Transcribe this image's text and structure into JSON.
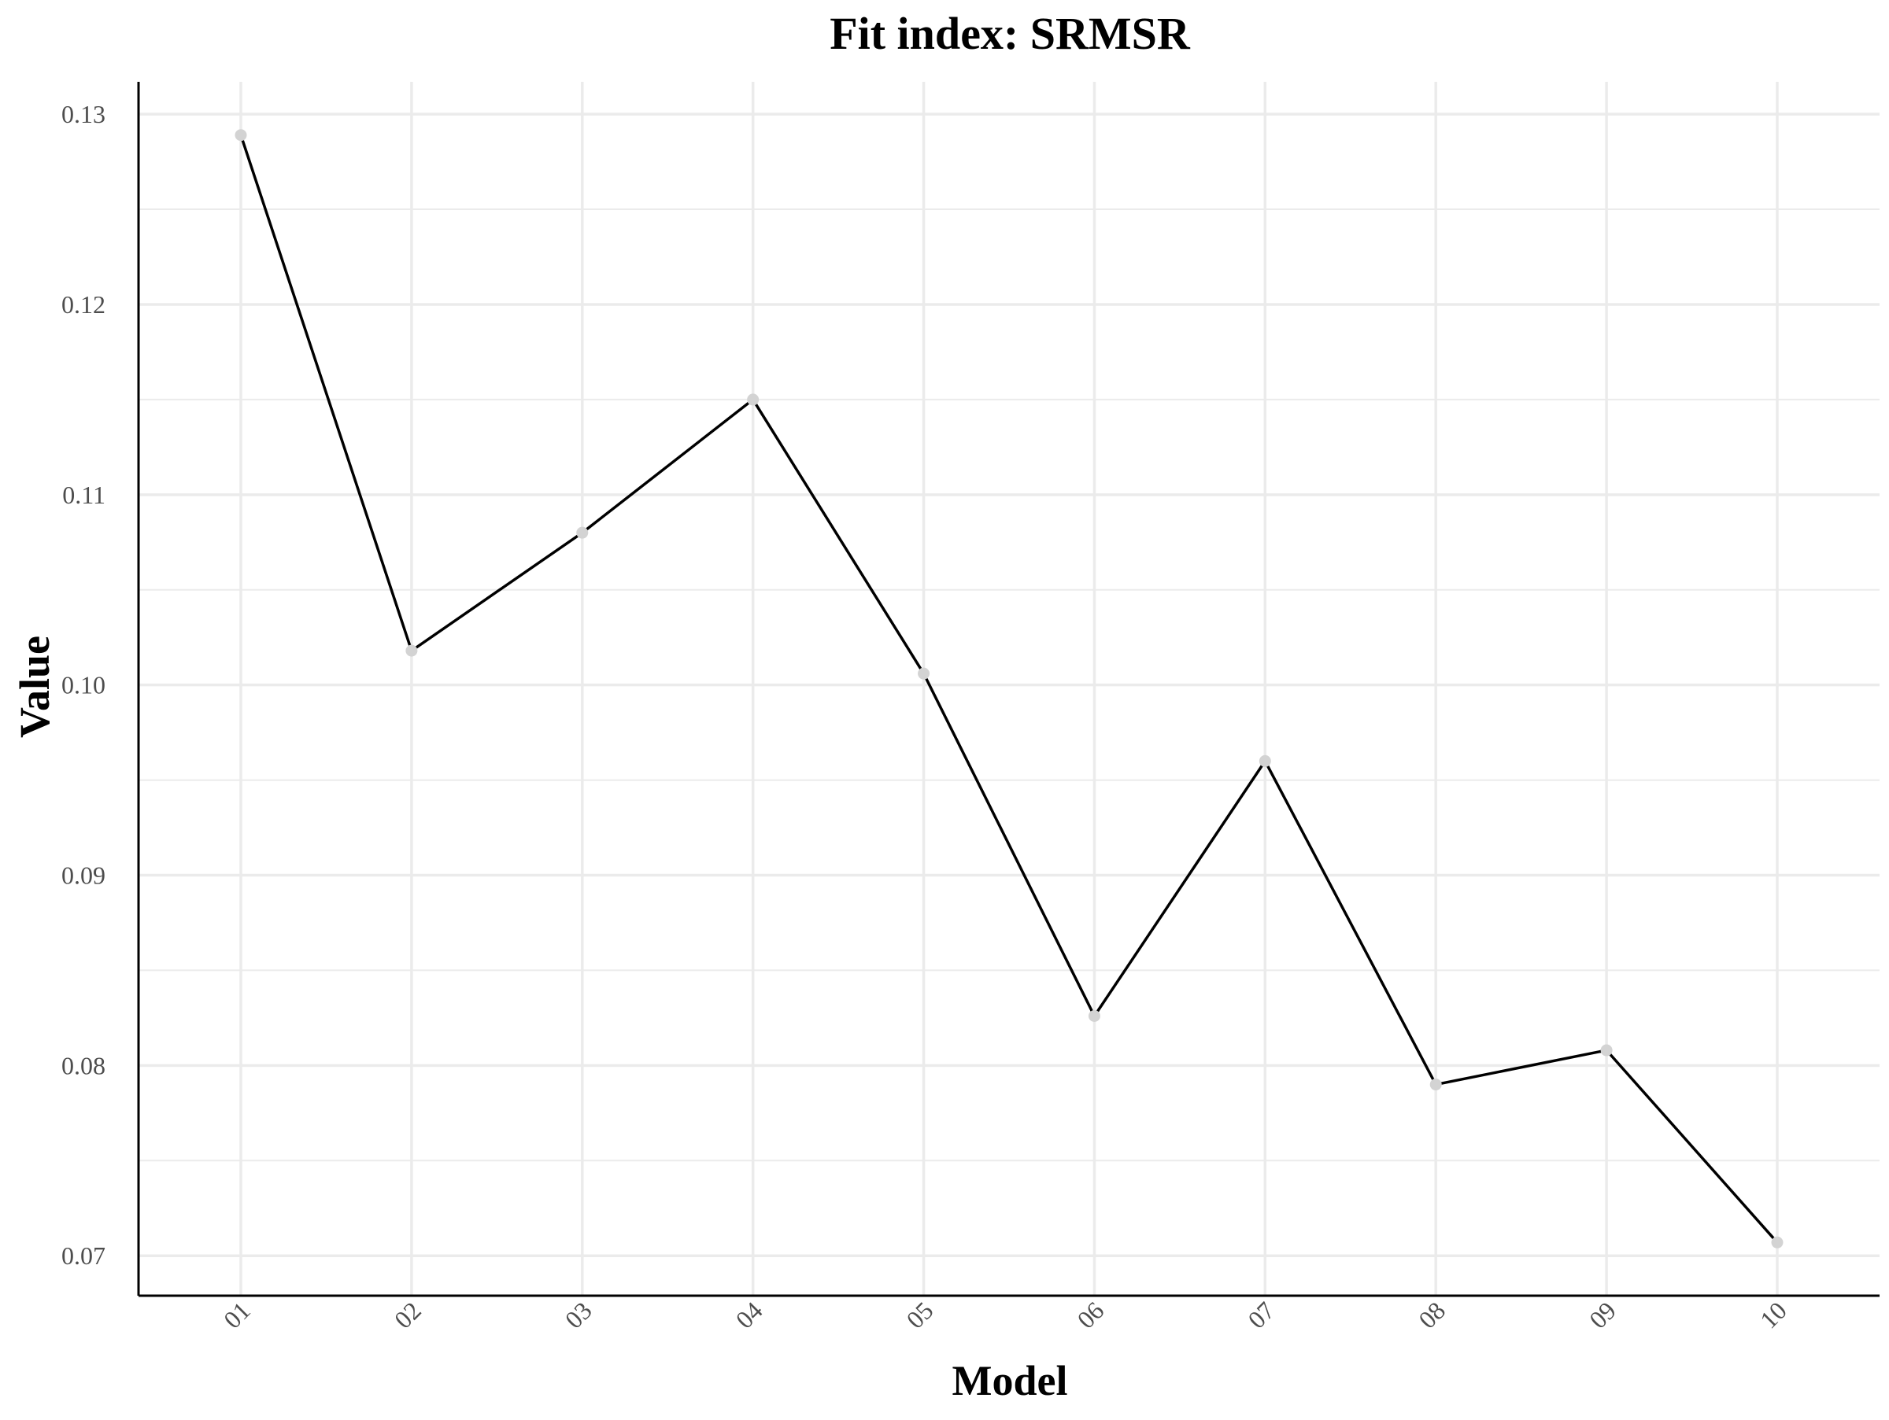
{
  "chart_data": {
    "type": "line",
    "title": "Fit index: SRMSR",
    "xlabel": "Model",
    "ylabel": "Value",
    "categories": [
      "01",
      "02",
      "03",
      "04",
      "05",
      "06",
      "07",
      "08",
      "09",
      "10"
    ],
    "values": [
      0.1289,
      0.1018,
      0.108,
      0.115,
      0.1006,
      0.0826,
      0.096,
      0.079,
      0.0808,
      0.0707
    ],
    "yticks": [
      "0.07",
      "0.08",
      "0.09",
      "0.10",
      "0.11",
      "0.12",
      "0.13"
    ],
    "ylim": [
      0.0679,
      0.1317
    ],
    "grid": true,
    "legend": "none",
    "colors": {
      "line": "#000000",
      "point": "#d3d3d3",
      "grid": "#ebebeb",
      "axis": "#000000",
      "tick_text": "#4d4d4d"
    }
  }
}
